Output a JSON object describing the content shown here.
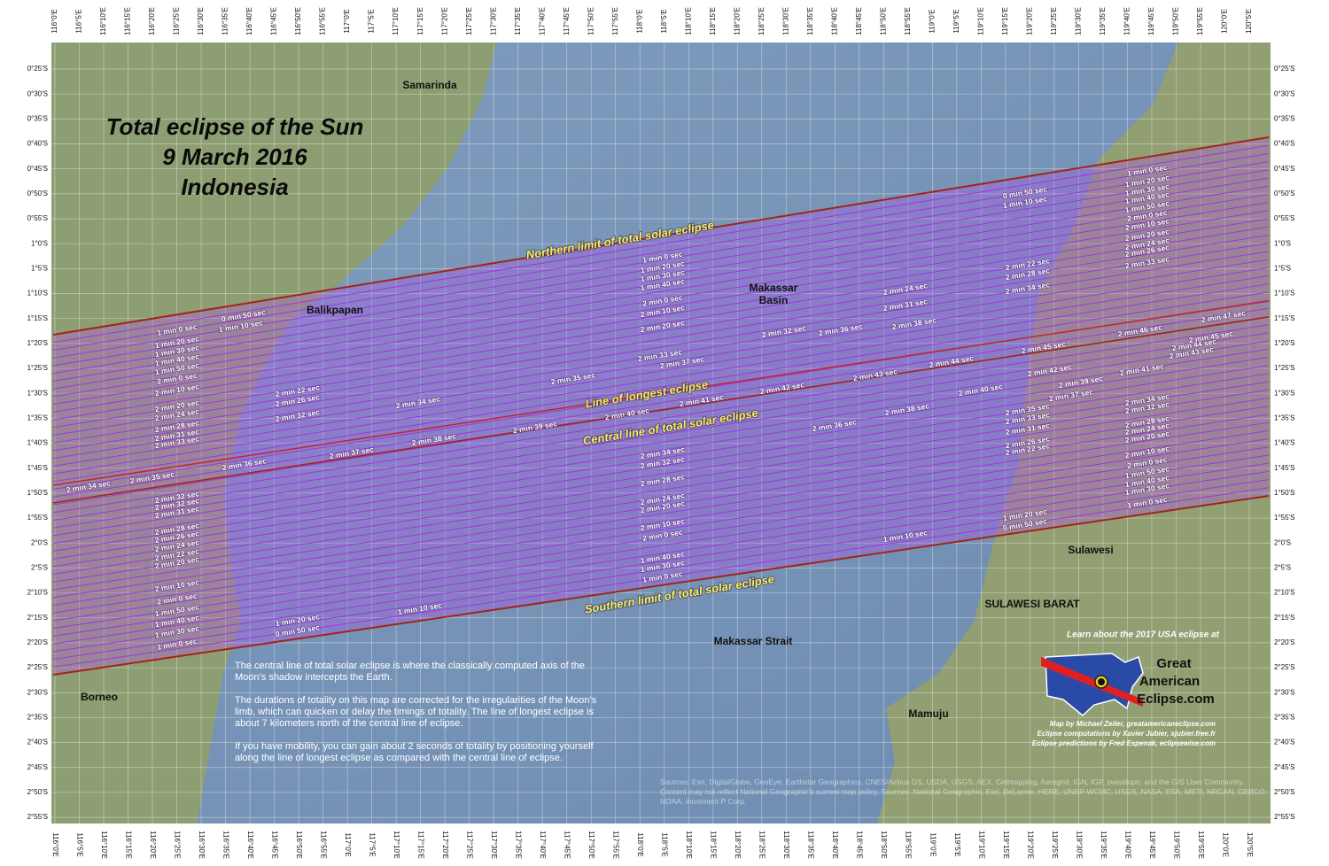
{
  "title": [
    "Total eclipse of the Sun",
    "9 March 2016",
    "Indonesia"
  ],
  "longitude_ticks": [
    "116°0'E",
    "116°5'E",
    "116°10'E",
    "116°15'E",
    "116°20'E",
    "116°25'E",
    "116°30'E",
    "116°35'E",
    "116°40'E",
    "116°45'E",
    "116°50'E",
    "116°55'E",
    "117°0'E",
    "117°5'E",
    "117°10'E",
    "117°15'E",
    "117°20'E",
    "117°25'E",
    "117°30'E",
    "117°35'E",
    "117°40'E",
    "117°45'E",
    "117°50'E",
    "117°55'E",
    "118°0'E",
    "118°5'E",
    "118°10'E",
    "118°15'E",
    "118°20'E",
    "118°25'E",
    "118°30'E",
    "118°35'E",
    "118°40'E",
    "118°45'E",
    "118°50'E",
    "118°55'E",
    "119°0'E",
    "119°5'E",
    "119°10'E",
    "119°15'E",
    "119°20'E",
    "119°25'E",
    "119°30'E",
    "119°35'E",
    "119°40'E",
    "119°45'E",
    "119°50'E",
    "119°55'E",
    "120°0'E",
    "120°5'E"
  ],
  "latitude_ticks": [
    "0°25'S",
    "0°30'S",
    "0°35'S",
    "0°40'S",
    "0°45'S",
    "0°50'S",
    "0°55'S",
    "1°0'S",
    "1°5'S",
    "1°10'S",
    "1°15'S",
    "1°20'S",
    "1°25'S",
    "1°30'S",
    "1°35'S",
    "1°40'S",
    "1°45'S",
    "1°50'S",
    "1°55'S",
    "2°0'S",
    "2°5'S",
    "2°10'S",
    "2°15'S",
    "2°20'S",
    "2°25'S",
    "2°30'S",
    "2°35'S",
    "2°40'S",
    "2°45'S",
    "2°50'S",
    "2°55'S"
  ],
  "path_labels": {
    "northern_limit": "Northern limit of total solar eclipse",
    "longest": "Line of longest eclipse",
    "central": "Central line of total solar eclipse",
    "southern_limit": "Southern limit of total solar eclipse"
  },
  "places": [
    "Samarinda",
    "Balikpapan",
    "Makassar",
    "Basin",
    "Makassar Strait",
    "Sulawesi",
    "SULAWESI BARAT",
    "Borneo",
    "Mamuju"
  ],
  "durations": [
    "1 min 0 sec",
    "1 min 20 sec",
    "1 min 30 sec",
    "1 min 40 sec",
    "1 min 50 sec",
    "2 min 0 sec",
    "2 min 10 sec",
    "2 min 20 sec",
    "2 min 24 sec",
    "2 min 28 sec",
    "2 min 31 sec",
    "2 min 33 sec",
    "2 min 32 sec",
    "2 min 32 sec",
    "2 min 31 sec",
    "2 min 28 sec",
    "2 min 26 sec",
    "2 min 24 sec",
    "2 min 22 sec",
    "2 min 20 sec",
    "2 min 10 sec",
    "2 min 0 sec",
    "1 min 50 sec",
    "1 min 40 sec",
    "1 min 30 sec",
    "1 min 0 sec",
    "1 min 0 sec",
    "1 min 20 sec",
    "1 min 30 sec",
    "1 min 40 sec",
    "2 min 0 sec",
    "2 min 10 sec",
    "2 min 20 sec",
    "2 min 34 sec",
    "2 min 32 sec",
    "2 min 28 sec",
    "2 min 24 sec",
    "2 min 20 sec",
    "2 min 10 sec",
    "2 min 0 sec",
    "1 min 40 sec",
    "1 min 30 sec",
    "1 min 0 sec",
    "1 min 0 sec",
    "1 min 20 sec",
    "1 min 30 sec",
    "1 min 40 sec",
    "1 min 50 sec",
    "2 min 0 sec",
    "2 min 10 sec",
    "2 min 20 sec",
    "2 min 24 sec",
    "2 min 26 sec",
    "2 min 33 sec",
    "2 min 34 sec",
    "2 min 32 sec",
    "2 min 28 sec",
    "2 min 24 sec",
    "2 min 20 sec",
    "2 min 10 sec",
    "2 min 0 sec",
    "1 min 50 sec",
    "1 min 40 sec",
    "1 min 30 sec",
    "1 min 0 sec",
    "2 min 22 sec",
    "2 min 28 sec",
    "2 min 34 sec",
    "2 min 35 sec",
    "2 min 33 sec",
    "2 min 31 sec",
    "2 min 26 sec",
    "2 min 22 sec",
    "0 min 50 sec",
    "1 min 10 sec",
    "1 min 20 sec",
    "0 min 50 sec",
    "2 min 22 sec",
    "2 min 26 sec",
    "2 min 32 sec",
    "1 min 20 sec",
    "0 min 50 sec",
    "2 min 24 sec",
    "2 min 31 sec",
    "2 min 34 sec",
    "2 min 35 sec",
    "2 min 36 sec",
    "2 min 37 sec",
    "2 min 38 sec",
    "2 min 39 sec",
    "2 min 40 sec",
    "2 min 41 sec",
    "2 min 42 sec",
    "2 min 43 sec",
    "2 min 44 sec",
    "2 min 45 sec",
    "2 min 46 sec",
    "2 min 47 sec",
    "0 min 50 sec",
    "1 min 10 sec",
    "2 min 34 sec",
    "2 min 35 sec",
    "2 min 33 sec",
    "2 min 37 sec",
    "2 min 32 sec",
    "2 min 36 sec",
    "2 min 38 sec",
    "2 min 38 sec",
    "2 min 36 sec",
    "2 min 40 sec",
    "2 min 42 sec",
    "2 min 37 sec",
    "1 min 10 sec",
    "1 min 10 sec",
    "2 min 39 sec",
    "2 min 41 sec",
    "2 min 43 sec",
    "2 min 44 sec",
    "2 min 45 sec"
  ],
  "notes": [
    "The central line of total solar eclipse is where the classically computed axis of the Moon’s shadow intercepts the Earth.",
    "The durations of totality on this map are corrected for the irregularities of the Moon’s limb, which can quicken or delay the timings of totality. The line of longest eclipse is about 7 kilometers north of the central line of eclipse.",
    "If you have mobility, you can gain about 2 seconds of totality by positioning yourself along the line of longest eclipse as compared with the central line of eclipse."
  ],
  "promo": {
    "heading": "Learn about the 2017 USA eclipse at",
    "logo": [
      "Great",
      "American",
      "Eclipse.com"
    ]
  },
  "credits": [
    "Map by Michael Zeiler, greatamericaneclipse.com",
    "Eclipse computations by Xavier Jubier, xjubier.free.fr",
    "Eclipse predictions by Fred Espenak, eclipsewise.com"
  ],
  "sources": "Sources: Esri, DigitalGlobe, GeoEye, Earthstar Geographics, CNES/Airbus DS, USDA, USGS, AEX, Getmapping, Aerogrid, IGN, IGP, swisstopo, and the GIS User Community. Content may not reflect National Geographic's current map policy. Sources: National Geographic, Esri, DeLorme, HERE, UNEP-WCMC, USGS, NASA, ESA, METI, NRCAN, GEBCO, NOAA, increment P Corp."
}
